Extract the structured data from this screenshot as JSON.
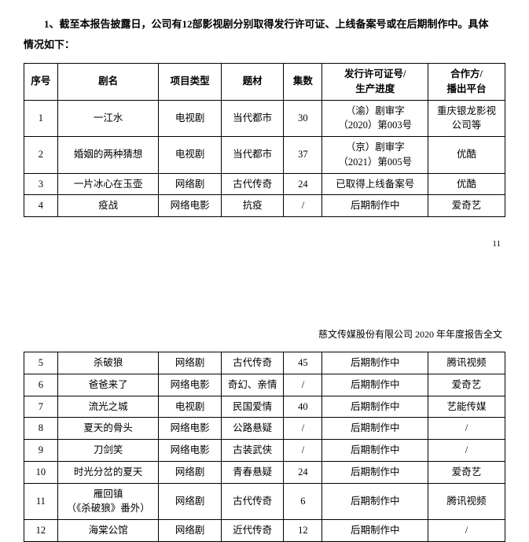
{
  "intro": {
    "line1": "1、截至本报告披露日，公司有12部影视剧分别取得发行许可证、上线备案号或在后期制作中。具体",
    "line2": "情况如下："
  },
  "columns": {
    "seq": "序号",
    "name": "剧名",
    "type": "项目类型",
    "theme": "题材",
    "episodes": "集数",
    "license": "发行许可证号/\n生产进度",
    "partner": "合作方/\n播出平台"
  },
  "table1_rows": [
    {
      "seq": "1",
      "name": "一江水",
      "type": "电视剧",
      "theme": "当代都市",
      "episodes": "30",
      "license": "（渝）剧审字\n（2020）第003号",
      "partner": "重庆银龙影视\n公司等"
    },
    {
      "seq": "2",
      "name": "婚姻的两种猜想",
      "type": "电视剧",
      "theme": "当代都市",
      "episodes": "37",
      "license": "（京）剧审字\n（2021）第005号",
      "partner": "优酷"
    },
    {
      "seq": "3",
      "name": "一片冰心在玉壶",
      "type": "网络剧",
      "theme": "古代传奇",
      "episodes": "24",
      "license": "已取得上线备案号",
      "partner": "优酷"
    },
    {
      "seq": "4",
      "name": "疫战",
      "type": "网络电影",
      "theme": "抗疫",
      "episodes": "/",
      "license": "后期制作中",
      "partner": "爱奇艺"
    }
  ],
  "page_number": "11",
  "page_header": "慈文传媒股份有限公司 2020 年年度报告全文",
  "table2_rows": [
    {
      "seq": "5",
      "name": "杀破狼",
      "type": "网络剧",
      "theme": "古代传奇",
      "episodes": "45",
      "license": "后期制作中",
      "partner": "腾讯视频"
    },
    {
      "seq": "6",
      "name": "爸爸来了",
      "type": "网络电影",
      "theme": "奇幻、亲情",
      "episodes": "/",
      "license": "后期制作中",
      "partner": "爱奇艺"
    },
    {
      "seq": "7",
      "name": "流光之城",
      "type": "电视剧",
      "theme": "民国爱情",
      "episodes": "40",
      "license": "后期制作中",
      "partner": "艺能传媒"
    },
    {
      "seq": "8",
      "name": "夏天的骨头",
      "type": "网络电影",
      "theme": "公路悬疑",
      "episodes": "/",
      "license": "后期制作中",
      "partner": "/"
    },
    {
      "seq": "9",
      "name": "刀剑笑",
      "type": "网络电影",
      "theme": "古装武侠",
      "episodes": "/",
      "license": "后期制作中",
      "partner": "/"
    },
    {
      "seq": "10",
      "name": "时光分岔的夏天",
      "type": "网络剧",
      "theme": "青春悬疑",
      "episodes": "24",
      "license": "后期制作中",
      "partner": "爱奇艺"
    },
    {
      "seq": "11",
      "name": "雁回镇\n（《杀破狼》番外）",
      "type": "网络剧",
      "theme": "古代传奇",
      "episodes": "6",
      "license": "后期制作中",
      "partner": "腾讯视频"
    },
    {
      "seq": "12",
      "name": "海棠公馆",
      "type": "网络剧",
      "theme": "近代传奇",
      "episodes": "12",
      "license": "后期制作中",
      "partner": "/"
    }
  ]
}
